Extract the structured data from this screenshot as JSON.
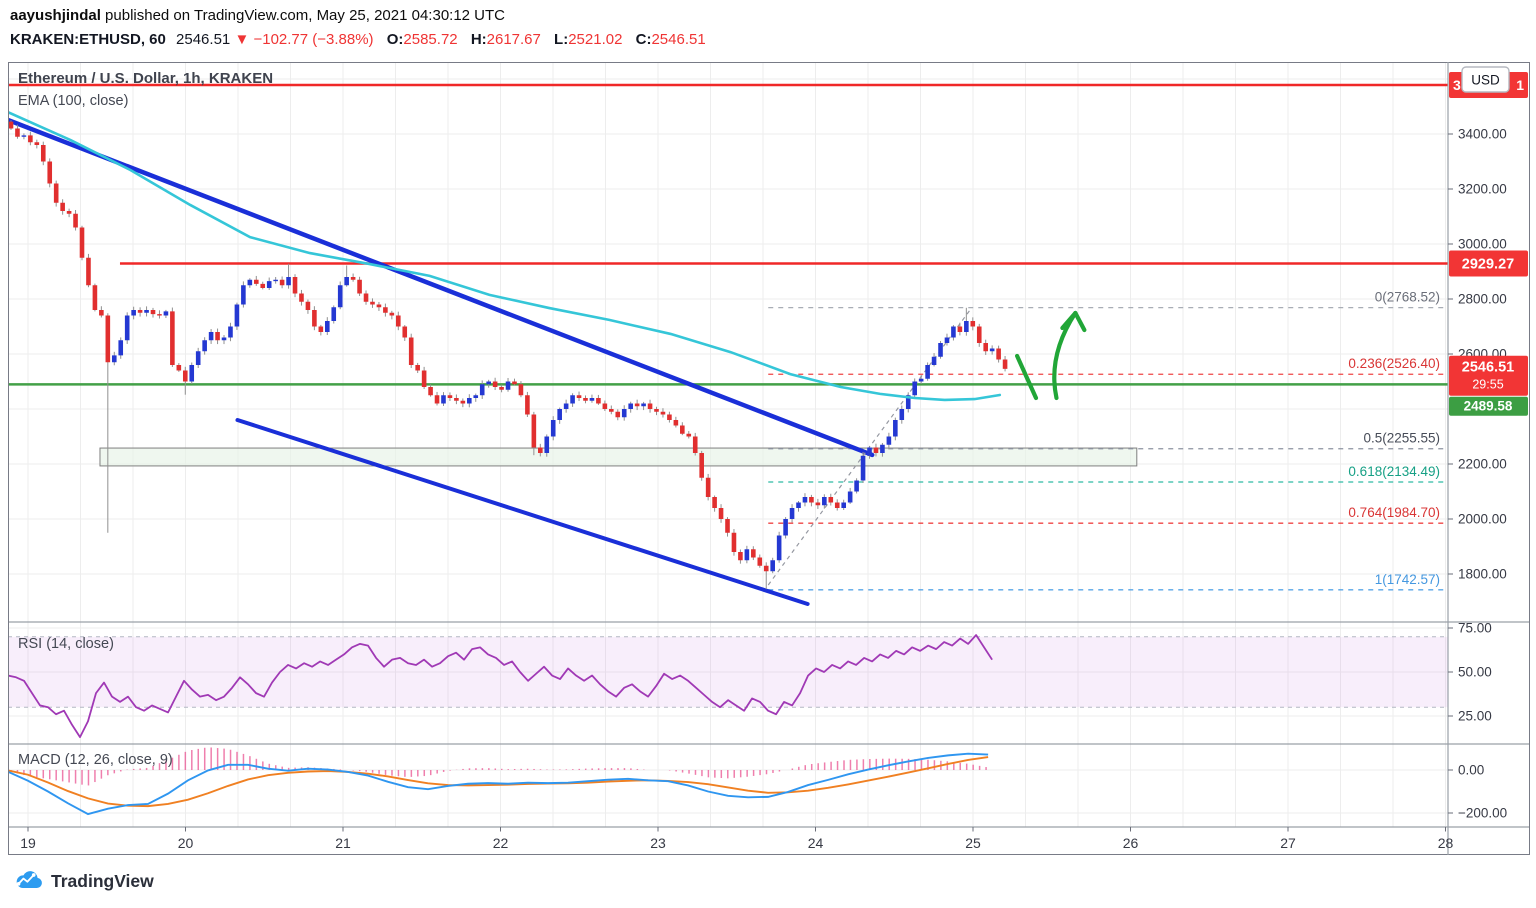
{
  "header": {
    "author": "aayushjindal",
    "published": " published on TradingView.com, May 25, 2021 04:30:12 UTC",
    "symbol": "KRAKEN:ETHUSD, 60",
    "last_price": "2546.51",
    "direction_icon": "▼",
    "change": "−102.77 (−3.88%)",
    "ohlc": {
      "o_label": "O:",
      "o": "2585.72",
      "h_label": "H:",
      "h": "2617.67",
      "l_label": "L:",
      "l": "2521.02",
      "c_label": "C:",
      "c": "2546.51"
    }
  },
  "chart": {
    "title": "Ethereum / U.S. Dollar, 1h, KRAKEN",
    "ema_label": "EMA (100, close)",
    "rsi_label": "RSI (14, close)",
    "macd_label": "MACD (12, 26, close, 9)"
  },
  "axis": {
    "currency_chip": "USD",
    "price_ticks": [
      {
        "label": "3400.00",
        "price": 3400
      },
      {
        "label": "3200.00",
        "price": 3200
      },
      {
        "label": "3000.00",
        "price": 3000
      },
      {
        "label": "2800.00",
        "price": 2800
      },
      {
        "label": "2600.00",
        "price": 2600
      },
      {
        "label": "2200.00",
        "price": 2200
      },
      {
        "label": "2000.00",
        "price": 2000
      },
      {
        "label": "1800.00",
        "price": 1800
      }
    ],
    "rsi_ticks": [
      {
        "label": "75.00",
        "v": 75
      },
      {
        "label": "50.00",
        "v": 50
      },
      {
        "label": "25.00",
        "v": 25
      }
    ],
    "macd_ticks": [
      {
        "label": "0.00",
        "v": 0
      },
      {
        "label": "−200.00",
        "v": -200
      }
    ],
    "time_ticks": [
      {
        "label": "19",
        "day": 19
      },
      {
        "label": "20",
        "day": 20
      },
      {
        "label": "21",
        "day": 21
      },
      {
        "label": "22",
        "day": 22
      },
      {
        "label": "23",
        "day": 23
      },
      {
        "label": "24",
        "day": 24
      },
      {
        "label": "25",
        "day": 25
      },
      {
        "label": "26",
        "day": 26
      },
      {
        "label": "27",
        "day": 27
      },
      {
        "label": "28",
        "day": 28
      }
    ],
    "badges": {
      "top_red": {
        "left_fragment": "3",
        "right_fragment": "1",
        "color": "#f23535",
        "price": 3578
      },
      "resistance": {
        "label": "2929.27",
        "color": "#f23535",
        "price": 2929.27
      },
      "last": {
        "label": "2546.51",
        "countdown": "29:55",
        "color": "#f23535",
        "price": 2546.51
      },
      "green_line": {
        "label": "2489.58",
        "color": "#3c9e43",
        "price": 2489.58
      }
    }
  },
  "chart_data": {
    "type": "candlestick",
    "title": "Ethereum / U.S. Dollar, 1h, KRAKEN",
    "exchange": "KRAKEN",
    "x_axis": {
      "unit": "day of May 2021",
      "ticks": [
        19,
        20,
        21,
        22,
        23,
        24,
        25,
        26,
        27,
        28
      ]
    },
    "price_axis": {
      "visible_ticks": [
        3400,
        3200,
        3000,
        2800,
        2600,
        2200,
        2000,
        1800
      ],
      "approx_range": [
        1650,
        3650
      ]
    },
    "candles": {
      "start_day": 18.892,
      "step_days": 0.041,
      "first_open": 3445,
      "closes": [
        3420,
        3390,
        3395,
        3370,
        3360,
        3300,
        3220,
        3150,
        3120,
        3110,
        3060,
        2950,
        2850,
        2760,
        2740,
        2570,
        2595,
        2650,
        2740,
        2760,
        2750,
        2760,
        2745,
        2740,
        2755,
        2560,
        2540,
        2500,
        2560,
        2610,
        2650,
        2680,
        2650,
        2660,
        2700,
        2780,
        2850,
        2870,
        2855,
        2840,
        2865,
        2870,
        2850,
        2880,
        2820,
        2790,
        2760,
        2700,
        2680,
        2720,
        2770,
        2850,
        2880,
        2870,
        2820,
        2790,
        2780,
        2770,
        2750,
        2740,
        2700,
        2660,
        2560,
        2540,
        2480,
        2450,
        2420,
        2450,
        2440,
        2430,
        2420,
        2440,
        2450,
        2490,
        2500,
        2480,
        2470,
        2500,
        2490,
        2450,
        2380,
        2260,
        2240,
        2300,
        2360,
        2400,
        2420,
        2450,
        2440,
        2430,
        2440,
        2420,
        2400,
        2390,
        2370,
        2400,
        2420,
        2410,
        2420,
        2400,
        2390,
        2380,
        2360,
        2340,
        2310,
        2300,
        2240,
        2150,
        2080,
        2040,
        2000,
        1950,
        1880,
        1850,
        1890,
        1860,
        1830,
        1810,
        1850,
        1940,
        2000,
        2040,
        2060,
        2080,
        2060,
        2050,
        2080,
        2060,
        2040,
        2060,
        2100,
        2140,
        2230,
        2260,
        2240,
        2270,
        2300,
        2360,
        2400,
        2450,
        2500,
        2510,
        2560,
        2590,
        2640,
        2660,
        2700,
        2680,
        2720,
        2700,
        2640,
        2610,
        2620,
        2580,
        2546
      ],
      "wick_overrides": {
        "15": {
          "low": 1950
        },
        "27": {
          "low": 2452
        },
        "43": {
          "high": 2928
        },
        "52": {
          "high": 2922
        },
        "81": {
          "low": 2232
        },
        "117": {
          "low": 1745
        },
        "148": {
          "high": 2768
        }
      }
    },
    "ema100": {
      "points": [
        [
          18.87,
          3480
        ],
        [
          19.27,
          3378
        ],
        [
          19.65,
          3269
        ],
        [
          20.03,
          3142
        ],
        [
          20.41,
          3025
        ],
        [
          20.79,
          2967
        ],
        [
          21.17,
          2927
        ],
        [
          21.55,
          2884
        ],
        [
          21.93,
          2815
        ],
        [
          22.31,
          2767
        ],
        [
          22.69,
          2724
        ],
        [
          23.08,
          2673
        ],
        [
          23.46,
          2607
        ],
        [
          23.84,
          2527
        ],
        [
          24.16,
          2480
        ],
        [
          24.41,
          2455
        ],
        [
          24.63,
          2440
        ],
        [
          24.82,
          2433
        ],
        [
          25.01,
          2436
        ],
        [
          25.17,
          2451
        ]
      ]
    },
    "horizontal_lines": [
      {
        "name": "upper-resistance-line",
        "price": 3578,
        "from_day": 18.873,
        "to_day": 28.05,
        "color": "#f02828",
        "style": "solid"
      },
      {
        "name": "resistance-line-2929",
        "price": 2929.27,
        "from_day": 19.584,
        "to_day": 28.05,
        "color": "#f02828",
        "style": "solid"
      },
      {
        "name": "support-line-green",
        "price": 2489.58,
        "from_day": 18.873,
        "to_day": 28.05,
        "color": "#43a047",
        "style": "solid"
      }
    ],
    "trendlines": [
      {
        "name": "descending-trendline-upper",
        "from": [
          18.873,
          3451
        ],
        "to": [
          24.36,
          2233
        ],
        "color": "#1a2fd8",
        "width": 4.5
      },
      {
        "name": "descending-trendline-lower",
        "from": [
          20.33,
          2360
        ],
        "to": [
          23.95,
          1691
        ],
        "color": "#1a2fd8",
        "width": 4
      }
    ],
    "fib_connector": {
      "from": [
        23.7,
        1760
      ],
      "to": [
        24.99,
        2767
      ],
      "style": "dashed",
      "color": "#9598a1"
    },
    "fib_retracement": {
      "from_day": 23.7,
      "levels": [
        {
          "label": "0(2768.52)",
          "price": 2768.52,
          "line_color": "#a8adb5",
          "label_color": "#6a6e79"
        },
        {
          "label": "0.236(2526.40)",
          "price": 2526.4,
          "line_color": "#ef4545",
          "label_color": "#d93535"
        },
        {
          "label": "0.5(2255.55)",
          "price": 2255.55,
          "line_color": "#8c93a0",
          "label_color": "#474c58"
        },
        {
          "label": "0.618(2134.49)",
          "price": 2134.49,
          "line_color": "#2fbba5",
          "label_color": "#16a085"
        },
        {
          "label": "0.764(1984.70)",
          "price": 1984.7,
          "line_color": "#ef4545",
          "label_color": "#d93535"
        },
        {
          "label": "1(1742.57)",
          "price": 1742.57,
          "line_color": "#58a6e8",
          "label_color": "#4598e0"
        }
      ]
    },
    "support_zone": {
      "from_day": 19.457,
      "to_day": 26.04,
      "price_top": 2258,
      "price_bottom": 2193,
      "fill": "#e7f2e7",
      "border": "#7f7f7f"
    },
    "annotations": {
      "arrow_color": "#21a637",
      "strokes": [
        {
          "from": [
            25.28,
            2593
          ],
          "to": [
            25.4,
            2440
          ]
        }
      ],
      "arrow": {
        "tail": [
          25.53,
          2440
        ],
        "tip": [
          25.65,
          2749
        ]
      }
    },
    "rsi": {
      "start_day": 18.873,
      "step_days": 0.0508,
      "overbought": 70,
      "oversold": 30,
      "values": [
        48,
        47,
        45,
        38,
        31,
        30,
        26,
        28,
        20,
        13,
        22,
        38,
        44,
        36,
        33,
        36,
        30,
        28,
        31,
        29,
        27,
        36,
        45,
        40,
        36,
        37,
        34,
        36,
        41,
        47,
        43,
        38,
        36,
        44,
        50,
        54,
        52,
        55,
        53,
        56,
        54,
        57,
        60,
        64,
        66,
        65,
        58,
        53,
        57,
        58,
        55,
        54,
        57,
        53,
        55,
        59,
        61,
        57,
        63,
        64,
        60,
        58,
        54,
        56,
        50,
        45,
        49,
        53,
        48,
        46,
        52,
        48,
        45,
        48,
        43,
        39,
        36,
        41,
        43,
        39,
        36,
        42,
        49,
        46,
        48,
        45,
        41,
        37,
        33,
        30,
        34,
        31,
        28,
        35,
        33,
        28,
        26,
        33,
        31,
        38,
        48,
        52,
        50,
        54,
        52,
        56,
        54,
        58,
        56,
        60,
        58,
        62,
        60,
        64,
        62,
        65,
        63,
        67,
        65,
        69,
        66,
        71,
        64,
        57
      ]
    },
    "macd": {
      "start_day": 18.873,
      "step_days": 0.127,
      "macd_values": [
        -8,
        -50,
        -100,
        -155,
        -205,
        -180,
        -163,
        -158,
        -110,
        -48,
        -2,
        24,
        24,
        6,
        -3,
        6,
        2,
        -9,
        -26,
        -55,
        -80,
        -89,
        -74,
        -64,
        -61,
        -64,
        -59,
        -61,
        -59,
        -52,
        -45,
        -41,
        -48,
        -52,
        -72,
        -100,
        -120,
        -127,
        -125,
        -102,
        -70,
        -46,
        -20,
        2,
        22,
        40,
        56,
        68,
        76,
        72
      ],
      "signal_values": [
        -2,
        -22,
        -58,
        -98,
        -132,
        -156,
        -166,
        -168,
        -158,
        -138,
        -108,
        -74,
        -44,
        -24,
        -13,
        -7,
        -5,
        -9,
        -17,
        -30,
        -47,
        -62,
        -70,
        -72,
        -70,
        -68,
        -65,
        -63,
        -62,
        -59,
        -54,
        -50,
        -48,
        -51,
        -56,
        -66,
        -81,
        -96,
        -106,
        -104,
        -96,
        -83,
        -67,
        -49,
        -31,
        -12,
        8,
        28,
        47,
        60
      ]
    }
  },
  "logo": {
    "text": "TradingView"
  }
}
